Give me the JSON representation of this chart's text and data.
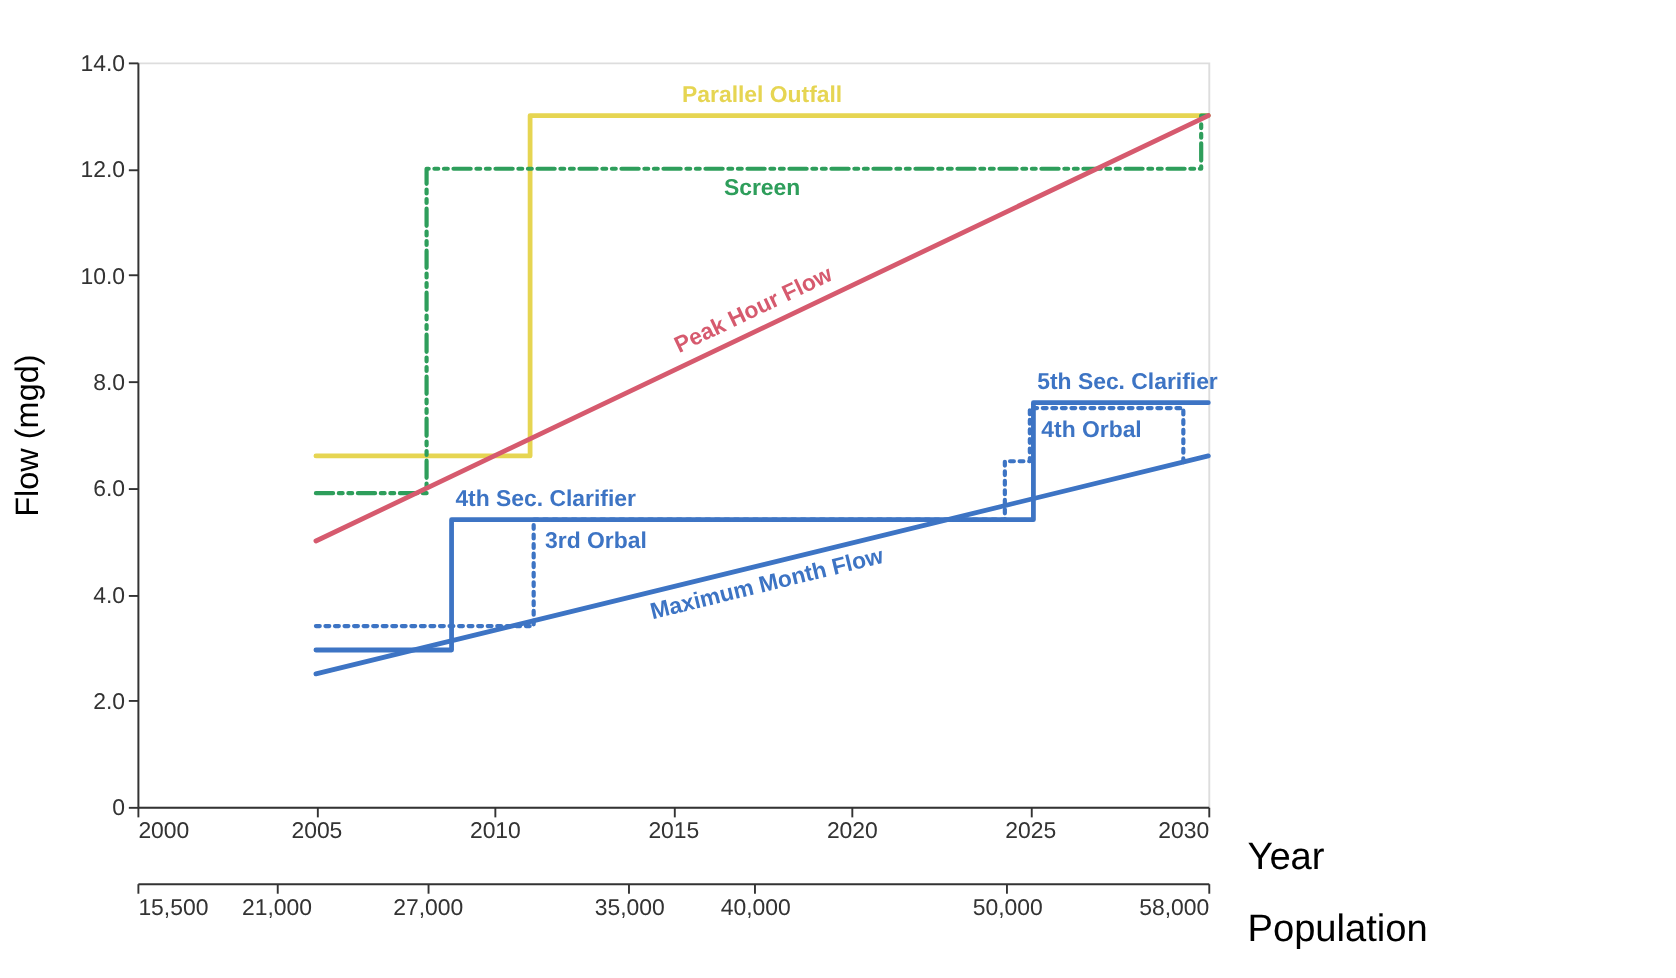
{
  "chart_data": {
    "type": "line",
    "xlabel": "Year",
    "ylabel": "Flow (mgd)",
    "x2label": "Population",
    "xlim": [
      2000,
      2030
    ],
    "xticks": [
      2000,
      2005,
      2010,
      2015,
      2020,
      2025,
      2030
    ],
    "ylim": [
      0,
      14
    ],
    "yticks": [
      {
        "value": 0,
        "label": "0"
      },
      {
        "value": 2,
        "label": "2.0"
      },
      {
        "value": 4,
        "label": "4.0"
      },
      {
        "value": 6,
        "label": "6.0"
      },
      {
        "value": 8,
        "label": "8.0"
      },
      {
        "value": 10,
        "label": "10.0"
      },
      {
        "value": 12,
        "label": "12.0"
      },
      {
        "value": 14,
        "label": "14.0"
      }
    ],
    "x2lim": [
      15500,
      58000
    ],
    "x2ticks": [
      {
        "value": 15500,
        "label": "15,500"
      },
      {
        "value": 21000,
        "label": "21,000"
      },
      {
        "value": 27000,
        "label": "27,000"
      },
      {
        "value": 35000,
        "label": "35,000"
      },
      {
        "value": 40000,
        "label": "40,000"
      },
      {
        "value": 50000,
        "label": "50,000"
      },
      {
        "value": 58000,
        "label": "58,000"
      }
    ],
    "grid": false,
    "marker": "none",
    "series": [
      {
        "name": "Parallel Outfall",
        "color": "#e6d552",
        "line_style": "solid",
        "x": [
          2005,
          2011,
          2011,
          2030
        ],
        "values": [
          6.6,
          6.6,
          13.0,
          13.0
        ]
      },
      {
        "name": "Screen",
        "color": "#2e9e5b",
        "line_style": "dashed",
        "x": [
          2005,
          2008.1,
          2008.1,
          2029.8,
          2029.8,
          2030
        ],
        "values": [
          5.9,
          5.9,
          12.0,
          12.0,
          13.0,
          13.0
        ]
      },
      {
        "name": "Peak Hour Flow",
        "color": "#d65a6e",
        "line_style": "solid",
        "x": [
          2005,
          2030
        ],
        "values": [
          5.0,
          13.0
        ]
      },
      {
        "name": "Maximum Month Flow",
        "color": "#3d74c4",
        "line_style": "solid",
        "x": [
          2005,
          2030
        ],
        "values": [
          2.5,
          6.6
        ]
      },
      {
        "color": "#3d74c4",
        "line_style": "solid",
        "x": [
          2005,
          2008.8,
          2008.8,
          2025.1,
          2025.1,
          2030
        ],
        "values": [
          2.95,
          2.95,
          5.4,
          5.4,
          7.6,
          7.6
        ]
      },
      {
        "color": "#3d74c4",
        "line_style": "dotted",
        "x": [
          2005,
          2011.1,
          2011.1,
          2024.3,
          2024.3,
          2025,
          2025,
          2029.3,
          2029.3
        ],
        "values": [
          3.4,
          3.4,
          5.4,
          5.4,
          6.5,
          6.5,
          7.5,
          7.5,
          6.4
        ]
      }
    ],
    "annotations": [
      {
        "text": "4th Sec. Clarifier",
        "x": 2008.8,
        "y": 5.4
      },
      {
        "text": "3rd Orbal",
        "x": 2011.1,
        "y": 5.4
      },
      {
        "text": "5th Sec. Clarifier",
        "x": 2025.1,
        "y": 7.6
      },
      {
        "text": "4th Orbal",
        "x": 2025.0,
        "y": 7.5
      }
    ]
  }
}
